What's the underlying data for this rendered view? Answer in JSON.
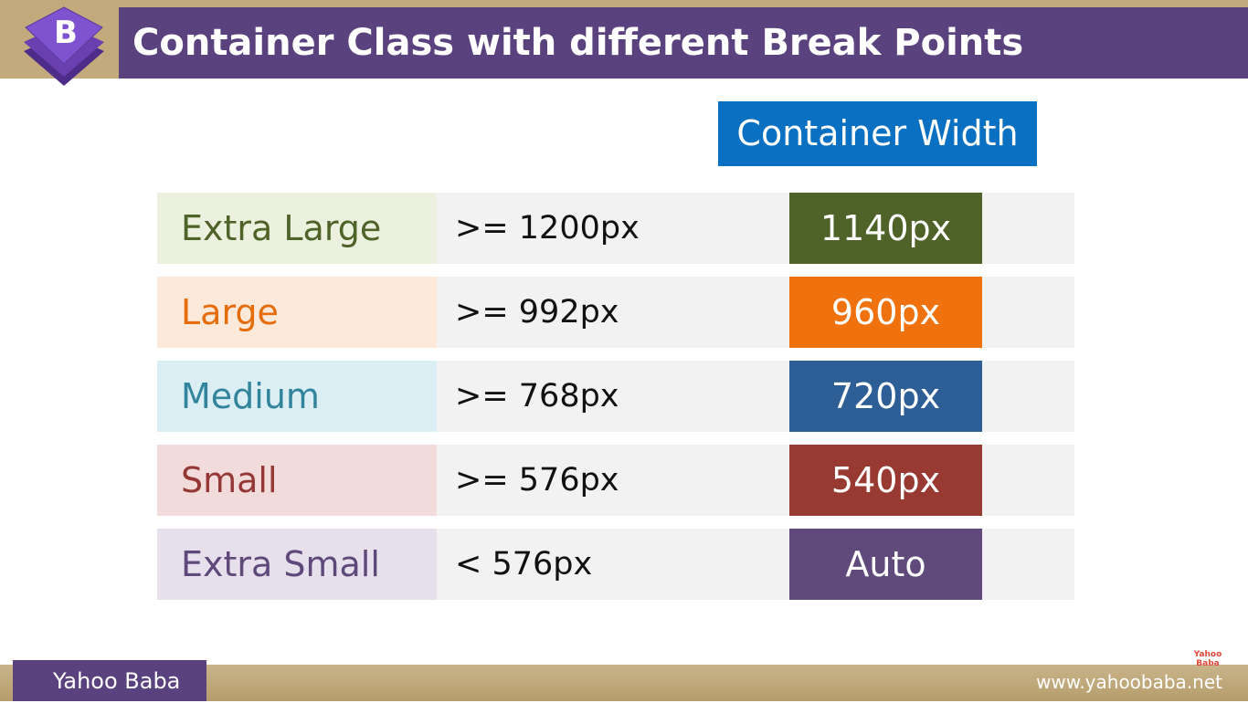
{
  "header": {
    "logo_letter": "B",
    "title": "Container Class with different Break Points"
  },
  "table": {
    "column_header": "Container Width",
    "rows": [
      [
        "Extra Large",
        ">= 1200px",
        "1140px"
      ],
      [
        "Large",
        ">= 992px",
        "960px"
      ],
      [
        "Medium",
        ">= 768px",
        "720px"
      ],
      [
        "Small",
        ">= 576px",
        "540px"
      ],
      [
        "Extra Small",
        "< 576px",
        "Auto"
      ]
    ]
  },
  "footer": {
    "brand": "Yahoo Baba",
    "watermark": "Yahoo Baba",
    "url": "www.yahoobaba.net"
  }
}
